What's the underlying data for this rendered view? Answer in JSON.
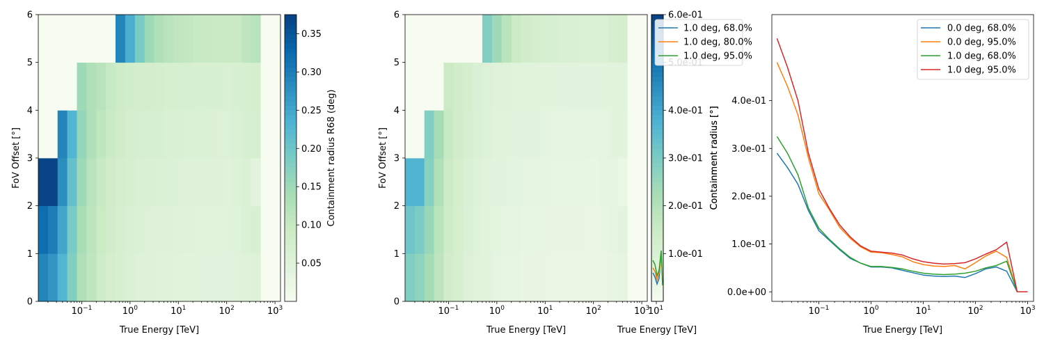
{
  "chart_data": [
    {
      "type": "heatmap",
      "title": "",
      "xlabel": "True Energy [TeV]",
      "ylabel": "FoV Offset [°]",
      "x_scale": "log",
      "xlim": [
        0.0126,
        1300
      ],
      "ylim": [
        0,
        6
      ],
      "x_ticks": [
        "10^{-1}",
        "10^{0}",
        "10^{1}",
        "10^{2}",
        "10^{3}"
      ],
      "y_ticks": [
        "0",
        "1",
        "2",
        "3",
        "4",
        "5",
        "6"
      ],
      "colormap": "GnBu",
      "colorbar": {
        "label": "Containment radius R68 (deg)",
        "range": [
          0.0,
          0.375
        ],
        "ticks": [
          "0.05",
          "0.10",
          "0.15",
          "0.20",
          "0.25",
          "0.30",
          "0.35"
        ]
      },
      "energy_edges": [
        0.0126,
        0.02,
        0.0316,
        0.05,
        0.0794,
        0.126,
        0.2,
        0.316,
        0.5,
        0.794,
        1.26,
        2.0,
        3.16,
        5.0,
        7.94,
        12.6,
        20.0,
        31.6,
        50.0,
        79.4,
        126,
        200,
        316,
        500
      ],
      "offset_edges": [
        0,
        1,
        2,
        3,
        4,
        5,
        6
      ],
      "values": [
        [
          0.29,
          0.27,
          0.23,
          0.18,
          0.13,
          0.11,
          0.09,
          0.075,
          0.065,
          0.058,
          0.054,
          0.052,
          0.05,
          0.048,
          0.046,
          0.044,
          0.043,
          0.042,
          0.042,
          0.04,
          0.045,
          0.05,
          0.055
        ],
        [
          0.32,
          0.3,
          0.25,
          0.19,
          0.14,
          0.115,
          0.095,
          0.08,
          0.07,
          0.062,
          0.058,
          0.056,
          0.054,
          0.052,
          0.05,
          0.048,
          0.047,
          0.046,
          0.046,
          0.045,
          0.05,
          0.058,
          0.065
        ],
        [
          0.37,
          0.37,
          0.28,
          0.21,
          0.15,
          0.12,
          0.1,
          0.085,
          0.075,
          0.068,
          0.064,
          0.062,
          0.06,
          0.058,
          0.056,
          0.054,
          0.053,
          0.052,
          0.052,
          0.05,
          0.055,
          0.06,
          0.04
        ],
        [
          0.0,
          0.0,
          0.29,
          0.23,
          0.16,
          0.13,
          0.11,
          0.095,
          0.085,
          0.075,
          0.07,
          0.068,
          0.066,
          0.064,
          0.062,
          0.06,
          0.059,
          0.058,
          0.057,
          0.056,
          0.06,
          0.065,
          0.07
        ],
        [
          0.0,
          0.0,
          0.0,
          0.0,
          0.15,
          0.13,
          0.12,
          0.1,
          0.09,
          0.08,
          0.078,
          0.076,
          0.074,
          0.072,
          0.07,
          0.068,
          0.067,
          0.066,
          0.065,
          0.064,
          0.066,
          0.07,
          0.075
        ],
        [
          0.0,
          0.0,
          0.0,
          0.0,
          0.0,
          0.0,
          0.0,
          0.0,
          0.29,
          0.24,
          0.19,
          0.15,
          0.13,
          0.12,
          0.11,
          0.105,
          0.1,
          0.1,
          0.098,
          0.096,
          0.098,
          0.11,
          0.12
        ]
      ]
    },
    {
      "type": "heatmap",
      "title": "",
      "xlabel": "True Energy [TeV]",
      "ylabel": "FoV Offset [°]",
      "x_scale": "log",
      "xlim": [
        0.0126,
        1300
      ],
      "ylim": [
        0,
        6
      ],
      "x_ticks": [
        "10^{-1}",
        "10^{0}",
        "10^{1}",
        "10^{2}",
        "10^{3}"
      ],
      "y_ticks": [
        "0",
        "1",
        "2",
        "3",
        "4",
        "5",
        "6"
      ],
      "colormap": "GnBu",
      "colorbar": {
        "range": [
          0.0,
          0.6
        ],
        "ticks": [
          "1.0e-01",
          "2.0e-01",
          "3.0e-01",
          "4.0e-01",
          "5.0e-01",
          "6.0e-01"
        ]
      },
      "note_values_same_as_first_panel": true
    },
    {
      "type": "line",
      "title": "",
      "xlabel": "True Energy [TeV]",
      "ylabel": "Containment radius [°]",
      "x_scale": "log",
      "xlim": [
        10.8,
        11.5
      ],
      "ylim": [
        0.0,
        0.6
      ],
      "x_ticks": [
        "10^{1}"
      ],
      "legend": "top-right (overlapping)",
      "series": [
        {
          "name": "1.0 deg, 68.0%",
          "color": "#1f77b4"
        },
        {
          "name": "1.0 deg, 80.0%",
          "color": "#ff7f0e"
        },
        {
          "name": "1.0 deg, 95.0%",
          "color": "#2ca02c"
        }
      ]
    },
    {
      "type": "line",
      "title": "",
      "xlabel": "True Energy [TeV]",
      "ylabel": "Containment radius [°]",
      "x_scale": "log",
      "xlim": [
        0.0126,
        1300
      ],
      "ylim": [
        -0.02,
        0.58
      ],
      "x_ticks": [
        "10^{-1}",
        "10^{0}",
        "10^{1}",
        "10^{2}",
        "10^{3}"
      ],
      "y_ticks": [
        "0.0e+00",
        "1.0e-01",
        "2.0e-01",
        "3.0e-01",
        "4.0e-01"
      ],
      "legend": "top-right",
      "x": [
        0.0158,
        0.0251,
        0.0398,
        0.0631,
        0.1,
        0.158,
        0.251,
        0.398,
        0.631,
        1.0,
        1.58,
        2.51,
        3.98,
        6.31,
        10.0,
        15.8,
        25.1,
        39.8,
        63.1,
        100,
        158,
        251,
        398,
        631,
        1000
      ],
      "series": [
        {
          "name": "0.0 deg, 68.0%",
          "color": "#1f77b4",
          "values": [
            0.29,
            0.26,
            0.225,
            0.17,
            0.128,
            0.108,
            0.088,
            0.07,
            0.06,
            0.052,
            0.052,
            0.05,
            0.045,
            0.04,
            0.035,
            0.033,
            0.032,
            0.033,
            0.03,
            0.038,
            0.048,
            0.052,
            0.043,
            0.0,
            0.0
          ]
        },
        {
          "name": "0.0 deg, 95.0%",
          "color": "#ff7f0e",
          "values": [
            0.48,
            0.43,
            0.37,
            0.28,
            0.205,
            0.172,
            0.135,
            0.112,
            0.094,
            0.083,
            0.082,
            0.078,
            0.073,
            0.063,
            0.057,
            0.054,
            0.053,
            0.055,
            0.048,
            0.061,
            0.075,
            0.085,
            0.072,
            0.0,
            0.0
          ]
        },
        {
          "name": "1.0 deg, 68.0%",
          "color": "#2ca02c",
          "values": [
            0.325,
            0.29,
            0.245,
            0.175,
            0.133,
            0.11,
            0.09,
            0.072,
            0.06,
            0.053,
            0.053,
            0.051,
            0.048,
            0.043,
            0.039,
            0.037,
            0.036,
            0.037,
            0.039,
            0.043,
            0.05,
            0.055,
            0.064,
            0.0,
            0.0
          ]
        },
        {
          "name": "1.0 deg, 95.0%",
          "color": "#d62728",
          "values": [
            0.53,
            0.47,
            0.4,
            0.29,
            0.215,
            0.175,
            0.14,
            0.115,
            0.096,
            0.085,
            0.083,
            0.081,
            0.077,
            0.069,
            0.063,
            0.06,
            0.058,
            0.059,
            0.061,
            0.069,
            0.079,
            0.088,
            0.104,
            0.0,
            0.0
          ]
        }
      ]
    }
  ]
}
